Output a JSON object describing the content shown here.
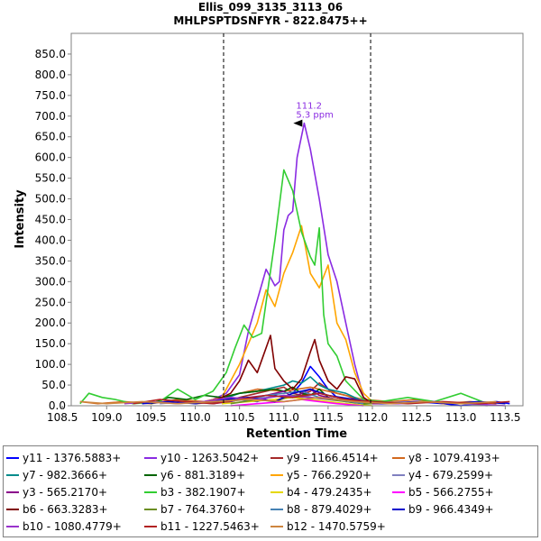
{
  "chart_data": {
    "type": "line",
    "title": "Ellis_099_3135_3113_06",
    "subtitle": "MHLPSPTDSNFYR - 822.8475++",
    "xlabel": "Retention Time",
    "ylabel": "Intensity",
    "xlim": [
      108.6,
      113.7
    ],
    "ylim": [
      0,
      900
    ],
    "x_ticks": [
      "108.5",
      "109.0",
      "109.5",
      "110.0",
      "110.5",
      "111.0",
      "111.5",
      "112.0",
      "112.5",
      "113.0",
      "113.5"
    ],
    "y_ticks": [
      "0.0",
      "50.0",
      "100.0",
      "150.0",
      "200.0",
      "250.0",
      "300.0",
      "350.0",
      "400.0",
      "450.0",
      "500.0",
      "550.0",
      "600.0",
      "650.0",
      "700.0",
      "750.0",
      "800.0",
      "850.0"
    ],
    "integration_bounds": [
      110.32,
      111.98
    ],
    "annotation": {
      "text_rt": "111.2",
      "text_ppm": "5.3 ppm",
      "x": 111.23,
      "y": 683,
      "color": "#8a2be2"
    },
    "legend_position": "bottom",
    "grid": false,
    "series": [
      {
        "name": "y11 - 1376.5883+",
        "color": "#0000ff",
        "x": [
          110.3,
          110.5,
          110.7,
          110.9,
          111.0,
          111.1,
          111.2,
          111.3,
          111.4,
          111.5,
          111.6,
          111.7,
          111.9,
          112.2,
          112.5,
          112.8,
          113.0,
          113.2,
          113.4,
          113.55
        ],
        "y": [
          5,
          15,
          10,
          25,
          20,
          30,
          55,
          95,
          70,
          40,
          20,
          15,
          5,
          5,
          10,
          5,
          0,
          5,
          10,
          5
        ]
      },
      {
        "name": "y10 - 1263.5042+",
        "color": "#8a2be2",
        "x": [
          110.0,
          110.2,
          110.35,
          110.5,
          110.6,
          110.7,
          110.8,
          110.9,
          110.95,
          111.0,
          111.05,
          111.1,
          111.15,
          111.23,
          111.3,
          111.4,
          111.5,
          111.6,
          111.7,
          111.8,
          111.9,
          112.0
        ],
        "y": [
          5,
          15,
          30,
          75,
          180,
          255,
          330,
          290,
          300,
          425,
          460,
          470,
          600,
          683,
          620,
          500,
          365,
          300,
          200,
          100,
          20,
          5
        ]
      },
      {
        "name": "y9 - 1166.4514+",
        "color": "#a52a2a",
        "x": [
          110.0,
          110.3,
          110.5,
          110.7,
          110.9,
          111.0,
          111.1,
          111.2,
          111.3,
          111.4,
          111.5,
          111.6,
          111.7,
          111.9,
          112.2
        ],
        "y": [
          5,
          10,
          20,
          30,
          40,
          45,
          30,
          25,
          35,
          55,
          40,
          30,
          25,
          10,
          5
        ]
      },
      {
        "name": "y8 - 1079.4193+",
        "color": "#d2691e",
        "x": [
          108.7,
          108.9,
          109.2,
          109.5,
          109.8,
          110.1,
          110.4,
          110.7,
          111.0,
          111.3,
          111.6,
          111.9,
          112.2,
          112.5,
          112.8,
          113.1,
          113.4
        ],
        "y": [
          10,
          5,
          10,
          5,
          15,
          10,
          25,
          40,
          35,
          45,
          30,
          15,
          10,
          15,
          5,
          10,
          5
        ]
      },
      {
        "name": "y7 - 982.3666+",
        "color": "#008b8b",
        "x": [
          110.0,
          110.3,
          110.5,
          110.7,
          110.9,
          111.0,
          111.1,
          111.2,
          111.3,
          111.4,
          111.5,
          111.6,
          111.7,
          111.9,
          112.2
        ],
        "y": [
          5,
          15,
          30,
          35,
          45,
          50,
          60,
          55,
          70,
          50,
          40,
          35,
          30,
          10,
          5
        ]
      },
      {
        "name": "y6 - 881.3189+",
        "color": "#006400",
        "x": [
          109.5,
          109.7,
          109.9,
          110.1,
          110.3,
          110.5,
          110.7,
          110.9,
          111.0,
          111.1,
          111.2,
          111.3,
          111.4,
          111.5,
          111.6,
          111.7,
          111.9,
          112.1
        ],
        "y": [
          5,
          20,
          15,
          25,
          20,
          30,
          35,
          40,
          35,
          45,
          30,
          25,
          40,
          20,
          15,
          10,
          5,
          5
        ]
      },
      {
        "name": "y5 - 766.2920+",
        "color": "#ffa500",
        "x": [
          110.3,
          110.4,
          110.5,
          110.6,
          110.7,
          110.8,
          110.9,
          111.0,
          111.1,
          111.2,
          111.3,
          111.4,
          111.5,
          111.6,
          111.7,
          111.8,
          111.9,
          112.0
        ],
        "y": [
          20,
          60,
          100,
          150,
          200,
          280,
          240,
          320,
          370,
          435,
          320,
          285,
          340,
          200,
          160,
          80,
          30,
          10
        ]
      },
      {
        "name": "y4 - 679.2599+",
        "color": "#8080c0",
        "x": [
          109.6,
          109.9,
          110.2,
          110.5,
          110.8,
          111.0,
          111.2,
          111.4,
          111.6,
          111.8,
          112.1,
          112.4,
          112.7,
          113.0,
          113.3
        ],
        "y": [
          5,
          10,
          5,
          15,
          20,
          25,
          20,
          30,
          20,
          15,
          10,
          5,
          10,
          5,
          0
        ]
      },
      {
        "name": "y3 - 565.2170+",
        "color": "#8b008b",
        "x": [
          110.2,
          110.4,
          110.6,
          110.8,
          111.0,
          111.1,
          111.2,
          111.3,
          111.4,
          111.5,
          111.6,
          111.8,
          112.0,
          112.3
        ],
        "y": [
          5,
          10,
          20,
          25,
          35,
          20,
          30,
          40,
          25,
          20,
          15,
          10,
          5,
          5
        ]
      },
      {
        "name": "b3 - 382.1907+",
        "color": "#32cd32",
        "x": [
          108.7,
          108.8,
          108.95,
          109.1,
          109.3,
          109.6,
          109.8,
          110.0,
          110.2,
          110.35,
          110.45,
          110.55,
          110.65,
          110.75,
          110.9,
          111.0,
          111.1,
          111.2,
          111.3,
          111.35,
          111.4,
          111.45,
          111.5,
          111.6,
          111.7,
          111.9,
          112.1,
          112.4,
          112.7,
          113.0,
          113.3
        ],
        "y": [
          5,
          30,
          20,
          15,
          5,
          10,
          40,
          15,
          35,
          80,
          140,
          195,
          165,
          175,
          400,
          570,
          520,
          420,
          360,
          340,
          430,
          220,
          150,
          120,
          60,
          15,
          10,
          20,
          10,
          30,
          5
        ]
      },
      {
        "name": "b4 - 479.2435+",
        "color": "#e6d800",
        "x": [
          110.3,
          110.6,
          110.9,
          111.1,
          111.3,
          111.5,
          111.7,
          112.0
        ],
        "y": [
          5,
          10,
          15,
          20,
          15,
          10,
          5,
          0
        ]
      },
      {
        "name": "b5 - 566.2755+",
        "color": "#ff00ff",
        "x": [
          110.4,
          110.7,
          111.0,
          111.2,
          111.4,
          111.6,
          111.9
        ],
        "y": [
          0,
          5,
          10,
          15,
          10,
          5,
          0
        ]
      },
      {
        "name": "b6 - 663.3283+",
        "color": "#800000",
        "x": [
          110.2,
          110.4,
          110.5,
          110.6,
          110.7,
          110.8,
          110.85,
          110.9,
          111.0,
          111.1,
          111.2,
          111.3,
          111.35,
          111.4,
          111.5,
          111.6,
          111.7,
          111.8,
          111.9,
          112.0
        ],
        "y": [
          10,
          30,
          60,
          110,
          80,
          140,
          170,
          90,
          60,
          40,
          65,
          130,
          160,
          110,
          60,
          40,
          70,
          65,
          20,
          5
        ]
      },
      {
        "name": "b7 - 764.3760+",
        "color": "#6b8e23",
        "x": [
          110.4,
          110.7,
          110.9,
          111.1,
          111.3,
          111.5,
          111.7,
          112.0
        ],
        "y": [
          5,
          15,
          10,
          25,
          20,
          15,
          10,
          5
        ]
      },
      {
        "name": "b8 - 879.4029+",
        "color": "#4682b4",
        "x": [
          110.3,
          110.6,
          110.8,
          111.0,
          111.2,
          111.4,
          111.6,
          111.9
        ],
        "y": [
          10,
          15,
          25,
          30,
          35,
          20,
          15,
          5
        ]
      },
      {
        "name": "b9 - 966.4349+",
        "color": "#0000cd",
        "x": [
          109.4,
          109.7,
          110.0,
          110.3,
          110.6,
          110.9,
          111.1,
          111.3,
          111.5,
          111.8,
          112.1,
          112.5,
          112.9,
          113.2,
          113.5
        ],
        "y": [
          5,
          10,
          5,
          15,
          20,
          10,
          30,
          40,
          25,
          15,
          5,
          10,
          5,
          10,
          5
        ]
      },
      {
        "name": "b10 - 1080.4779+",
        "color": "#9932cc",
        "x": [
          109.2,
          109.5,
          109.8,
          110.1,
          110.4,
          110.7,
          111.0,
          111.3,
          111.6,
          111.9,
          112.3,
          112.7,
          113.1,
          113.5
        ],
        "y": [
          5,
          10,
          5,
          10,
          20,
          15,
          25,
          20,
          15,
          10,
          5,
          10,
          5,
          0
        ]
      },
      {
        "name": "b11 - 1227.5463+",
        "color": "#b22222",
        "x": [
          109.3,
          109.6,
          109.9,
          110.2,
          110.5,
          110.8,
          111.1,
          111.4,
          111.7,
          112.0,
          112.4,
          112.8,
          113.2,
          113.55
        ],
        "y": [
          5,
          15,
          10,
          5,
          15,
          25,
          20,
          30,
          15,
          10,
          5,
          10,
          5,
          10
        ]
      },
      {
        "name": "b12 - 1470.5759+",
        "color": "#cd853f",
        "x": [
          108.7,
          109.0,
          109.4,
          109.8,
          110.2,
          110.6,
          111.0,
          111.4,
          111.8,
          112.2,
          112.6,
          113.0,
          113.4
        ],
        "y": [
          10,
          5,
          10,
          5,
          10,
          15,
          10,
          20,
          10,
          5,
          10,
          5,
          10
        ]
      }
    ]
  }
}
